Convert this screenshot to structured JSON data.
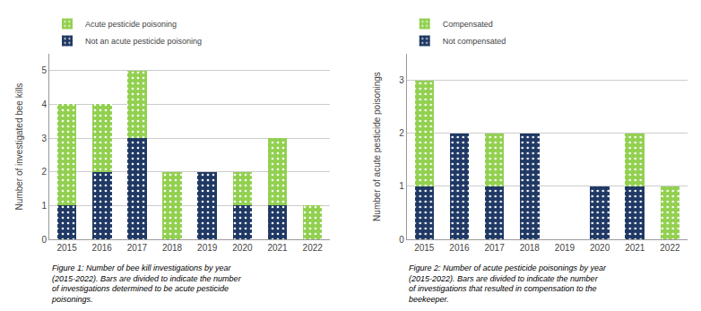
{
  "chart_data": [
    {
      "type": "bar",
      "stacked": true,
      "grid": true,
      "legend": "upper left",
      "categories": [
        "2015",
        "2016",
        "2017",
        "2018",
        "2019",
        "2020",
        "2021",
        "2022"
      ],
      "ylabel": "Number of investigated bee kills",
      "ylim": [
        0,
        5.5
      ],
      "yticks": [
        0,
        1,
        2,
        3,
        4,
        5
      ],
      "series": [
        {
          "name": "Not an acute pesticide poisoning",
          "color": "#1F3864",
          "values": [
            1,
            2,
            3,
            0,
            2,
            1,
            1,
            0
          ]
        },
        {
          "name": "Acute pesticide poisoning",
          "color": "#92D050",
          "values": [
            3,
            2,
            2,
            2,
            0,
            1,
            2,
            1
          ]
        }
      ],
      "annotations": [
        "Figure 1: Number of bee kill investigations by year\n(2015-2022). Bars are divided to indicate the number\nof investigations determined to be acute pesticide\npoisonings."
      ]
    },
    {
      "type": "bar",
      "stacked": true,
      "grid": true,
      "legend": "upper left",
      "categories": [
        "2015",
        "2016",
        "2017",
        "2018",
        "2019",
        "2020",
        "2021",
        "2022"
      ],
      "ylabel": "Number of acute pesticide poisonings",
      "ylim": [
        0,
        3.5
      ],
      "yticks": [
        0,
        1,
        2,
        3
      ],
      "series": [
        {
          "name": "Not compensated",
          "color": "#1F3864",
          "values": [
            1,
            2,
            1,
            2,
            0,
            1,
            1,
            0
          ]
        },
        {
          "name": "Compensated",
          "color": "#92D050",
          "values": [
            2,
            0,
            1,
            0,
            0,
            0,
            1,
            1
          ]
        }
      ],
      "annotations": [
        "Figure 2: Number of acute pesticide poisonings by year\n(2015-2022). Bars are divided to indicate the number\nof investigations that resulted in compensation to the\nbeekeeper."
      ]
    }
  ]
}
